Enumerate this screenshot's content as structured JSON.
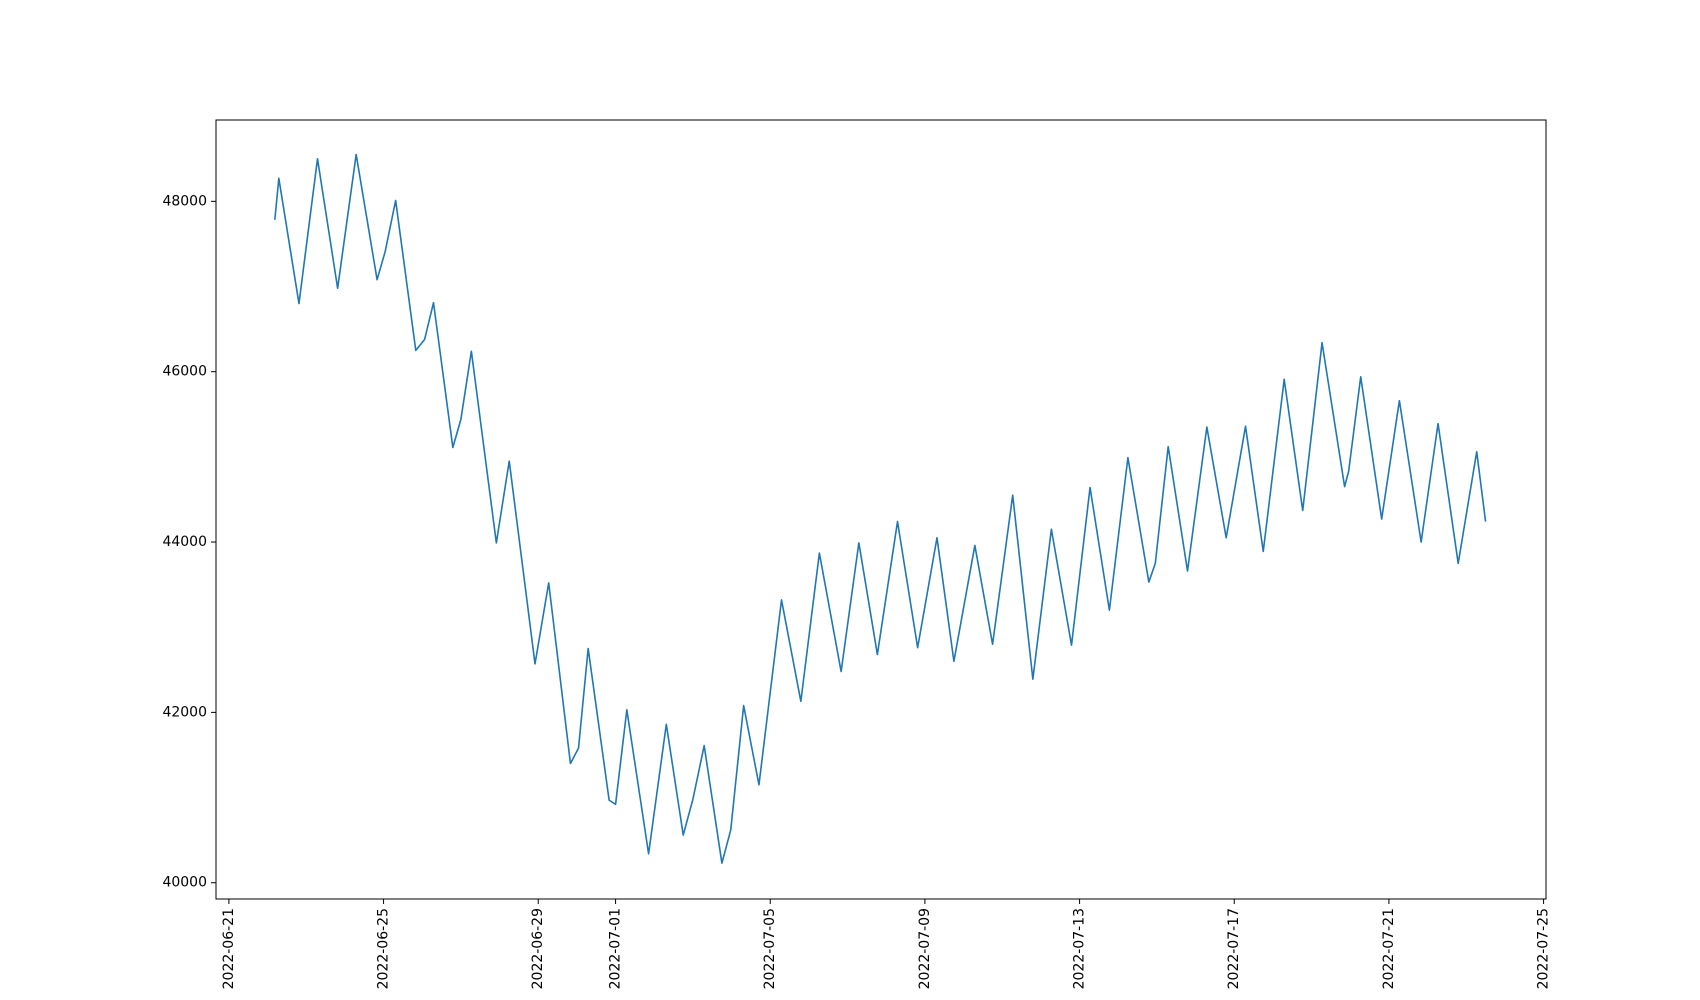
{
  "chart_data": {
    "type": "line",
    "x": [
      "2022-06-22T04:30",
      "2022-06-22T07:00",
      "2022-06-22T19:30",
      "2022-06-23T07:00",
      "2022-06-23T19:30",
      "2022-06-24T07:00",
      "2022-06-24T20:00",
      "2022-06-25T01:00",
      "2022-06-25T07:30",
      "2022-06-25T20:00",
      "2022-06-26T01:30",
      "2022-06-26T07:00",
      "2022-06-26T19:00",
      "2022-06-27T00:00",
      "2022-06-27T06:30",
      "2022-06-27T22:00",
      "2022-06-28T06:00",
      "2022-06-28T22:00",
      "2022-06-29T06:30",
      "2022-06-29T20:00",
      "2022-06-30T01:00",
      "2022-06-30T07:00",
      "2022-06-30T20:00",
      "2022-07-01T00:00",
      "2022-07-01T07:00",
      "2022-07-01T20:30",
      "2022-07-02T07:30",
      "2022-07-02T18:00",
      "2022-07-03T00:00",
      "2022-07-03T07:00",
      "2022-07-03T18:00",
      "2022-07-03T23:30",
      "2022-07-04T07:30",
      "2022-07-04T17:00",
      "2022-07-05T07:00",
      "2022-07-05T19:00",
      "2022-07-06T06:30",
      "2022-07-06T20:00",
      "2022-07-07T07:00",
      "2022-07-07T18:30",
      "2022-07-08T07:00",
      "2022-07-08T19:30",
      "2022-07-09T07:30",
      "2022-07-09T18:00",
      "2022-07-10T07:00",
      "2022-07-10T18:00",
      "2022-07-11T06:30",
      "2022-07-11T19:00",
      "2022-07-12T06:30",
      "2022-07-12T19:00",
      "2022-07-13T06:30",
      "2022-07-13T18:30",
      "2022-07-14T06:00",
      "2022-07-14T19:00",
      "2022-07-14T23:00",
      "2022-07-15T07:00",
      "2022-07-15T19:00",
      "2022-07-16T07:00",
      "2022-07-16T19:00",
      "2022-07-17T07:00",
      "2022-07-17T18:00",
      "2022-07-18T07:00",
      "2022-07-18T18:30",
      "2022-07-19T06:30",
      "2022-07-19T20:30",
      "2022-07-19T23:00",
      "2022-07-20T06:30",
      "2022-07-20T19:30",
      "2022-07-21T06:30",
      "2022-07-21T20:00",
      "2022-07-22T06:30",
      "2022-07-22T19:00",
      "2022-07-23T06:30",
      "2022-07-23T12:00"
    ],
    "series": [
      {
        "color": "#1f77b4",
        "values": [
          47783,
          48270,
          46800,
          48500,
          46980,
          48550,
          47080,
          47410,
          48010,
          46250,
          46380,
          46810,
          45110,
          45440,
          46240,
          43990,
          44950,
          42570,
          43520,
          41400,
          41580,
          42750,
          40970,
          40920,
          42030,
          40340,
          41860,
          40560,
          40980,
          41610,
          40230,
          40620,
          42080,
          41150,
          43320,
          42130,
          43870,
          42480,
          43990,
          42680,
          44240,
          42760,
          44050,
          42600,
          43960,
          42800,
          44550,
          42390,
          44150,
          42790,
          44640,
          43200,
          44990,
          43530,
          43750,
          45120,
          43660,
          45350,
          44050,
          45360,
          43890,
          45910,
          44370,
          46340,
          44650,
          44830,
          45940,
          44270,
          45660,
          44000,
          45390,
          43750,
          45060,
          44240
        ]
      }
    ],
    "xlim": [
      "2022-06-20T16:00",
      "2022-07-25T01:30"
    ],
    "xticks": [
      "2022-06-21",
      "2022-06-25",
      "2022-06-29",
      "2022-07-01",
      "2022-07-05",
      "2022-07-09",
      "2022-07-13",
      "2022-07-17",
      "2022-07-21",
      "2022-07-25"
    ],
    "ylim": [
      39809,
      48955
    ],
    "yticks": [
      40000,
      42000,
      44000,
      46000,
      48000
    ],
    "grid": false
  }
}
